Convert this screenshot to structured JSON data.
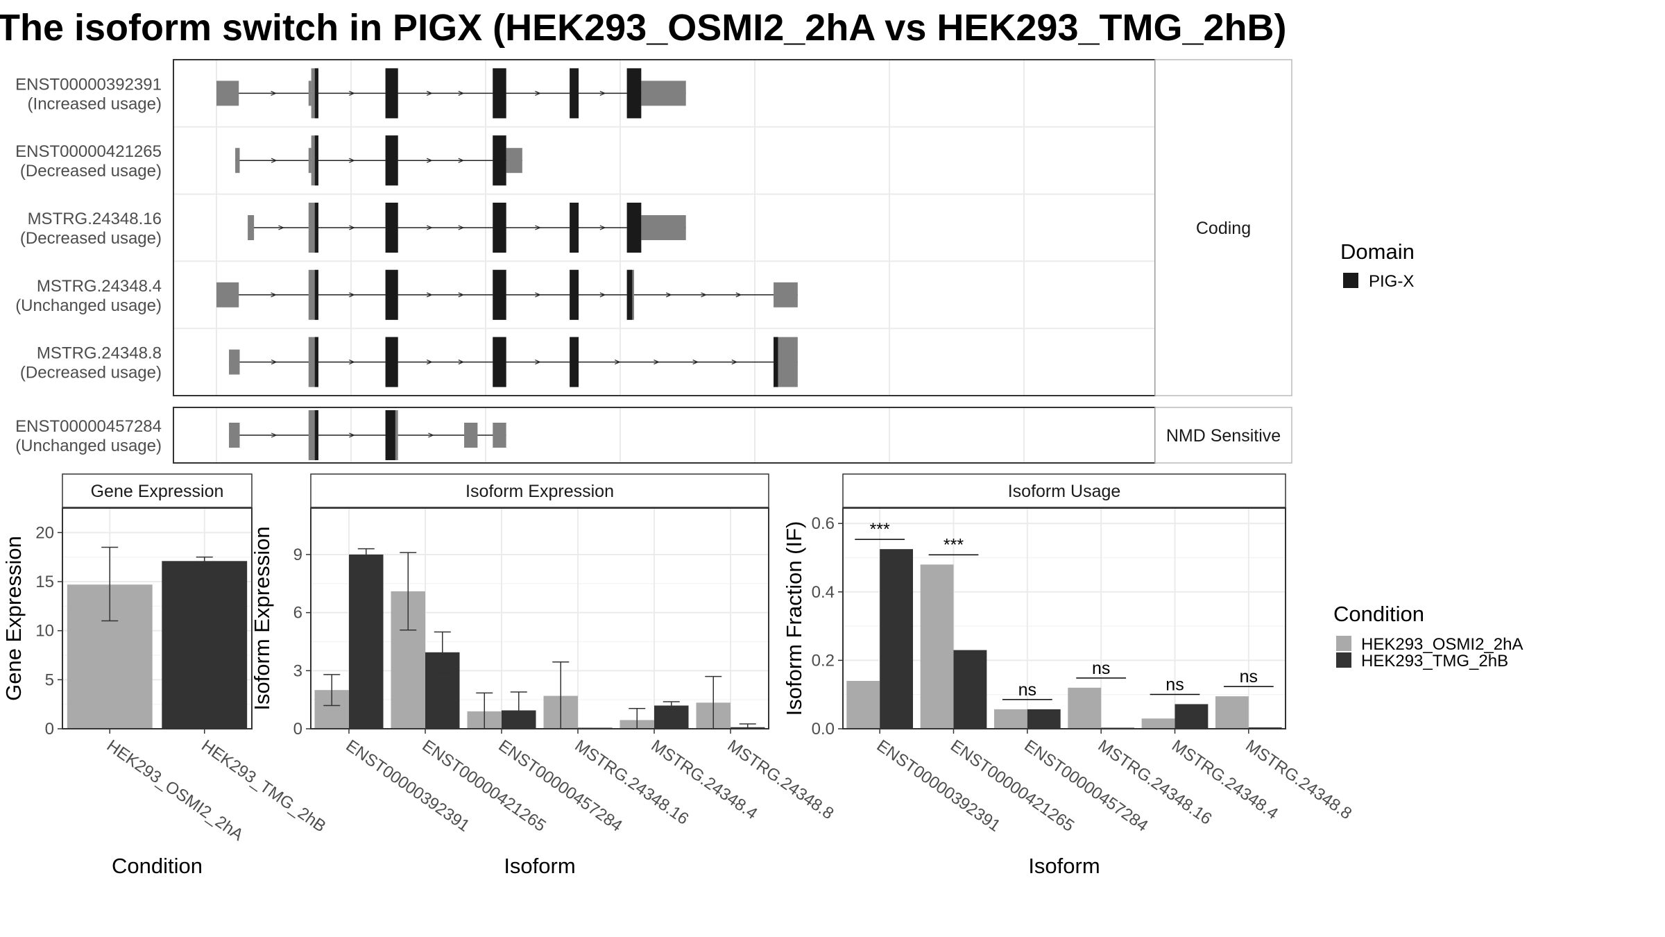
{
  "title": "The isoform switch in PIGX (HEK293_OSMI2_2hA vs HEK293_TMG_2hB)",
  "colors": {
    "exon": "#808080",
    "domain": "#1a1a1a",
    "cond_a": "#aaaaaa",
    "cond_b": "#333333",
    "grid": "#ebebeb",
    "border": "#333333",
    "strip_border": "#bbbbbb"
  },
  "domain_legend": {
    "title": "Domain",
    "items": [
      {
        "label": "PIG-X",
        "color": "#1a1a1a"
      }
    ]
  },
  "condition_legend": {
    "title": "Condition",
    "items": [
      {
        "label": "HEK293_OSMI2_2hA",
        "color": "#aaaaaa"
      },
      {
        "label": "HEK293_TMG_2hB",
        "color": "#333333"
      }
    ]
  },
  "structure": {
    "genomic_range": [
      0,
      100
    ],
    "groups": [
      {
        "label": "Coding",
        "transcripts": [
          {
            "id": "ENST00000392391",
            "usage": "(Increased usage)",
            "exons": [
              [
                0,
                2.5
              ],
              [
                10.3,
                10.6
              ],
              [
                10.6,
                11.4
              ],
              [
                18.9,
                20.3
              ],
              [
                30.9,
                32.4
              ],
              [
                39.5,
                40.5
              ],
              [
                45.9,
                47.5
              ],
              [
                47.5,
                52.5
              ]
            ],
            "utr": [
              [
                0,
                2.5
              ],
              [
                10.3,
                10.6
              ],
              [
                47.5,
                52.5
              ]
            ],
            "domains": [
              [
                11.0,
                11.4
              ],
              [
                18.9,
                20.3
              ],
              [
                30.9,
                32.4
              ],
              [
                39.5,
                40.5
              ],
              [
                45.9,
                47.5
              ]
            ]
          },
          {
            "id": "ENST00000421265",
            "usage": "(Decreased usage)",
            "exons": [
              [
                2.1,
                2.6
              ],
              [
                10.3,
                10.6
              ],
              [
                10.6,
                11.4
              ],
              [
                18.9,
                20.3
              ],
              [
                30.9,
                32.4
              ],
              [
                32.4,
                34.2
              ]
            ],
            "utr": [
              [
                2.1,
                2.6
              ],
              [
                10.3,
                10.6
              ],
              [
                32.4,
                34.2
              ]
            ],
            "domains": [
              [
                11.0,
                11.4
              ],
              [
                18.9,
                20.3
              ],
              [
                30.9,
                32.4
              ]
            ]
          },
          {
            "id": "MSTRG.24348.16",
            "usage": "(Decreased usage)",
            "exons": [
              [
                3.5,
                4.2
              ],
              [
                10.3,
                11.4
              ],
              [
                18.9,
                20.3
              ],
              [
                30.9,
                32.4
              ],
              [
                39.5,
                40.5
              ],
              [
                45.9,
                47.5
              ],
              [
                47.5,
                52.5
              ]
            ],
            "utr": [
              [
                3.5,
                4.2
              ],
              [
                10.3,
                11.0
              ],
              [
                47.5,
                52.5
              ]
            ],
            "domains": [
              [
                11.0,
                11.4
              ],
              [
                18.9,
                20.3
              ],
              [
                30.9,
                32.4
              ],
              [
                39.5,
                40.5
              ],
              [
                45.9,
                47.5
              ]
            ]
          },
          {
            "id": "MSTRG.24348.4",
            "usage": "(Unchanged usage)",
            "exons": [
              [
                0,
                2.5
              ],
              [
                10.3,
                11.4
              ],
              [
                18.9,
                20.3
              ],
              [
                30.9,
                32.4
              ],
              [
                39.5,
                40.5
              ],
              [
                45.9,
                46.7
              ],
              [
                62.3,
                65.0
              ]
            ],
            "utr": [
              [
                0,
                2.5
              ],
              [
                10.3,
                11.0
              ],
              [
                62.3,
                65.0
              ]
            ],
            "domains": [
              [
                11.0,
                11.4
              ],
              [
                18.9,
                20.3
              ],
              [
                30.9,
                32.4
              ],
              [
                39.5,
                40.5
              ],
              [
                45.9,
                46.5
              ]
            ]
          },
          {
            "id": "MSTRG.24348.8",
            "usage": "(Decreased usage)",
            "exons": [
              [
                1.4,
                2.6
              ],
              [
                10.3,
                11.4
              ],
              [
                18.9,
                20.3
              ],
              [
                30.9,
                32.4
              ],
              [
                39.5,
                40.5
              ],
              [
                62.3,
                65.0
              ]
            ],
            "utr": [
              [
                1.4,
                2.6
              ],
              [
                10.3,
                11.0
              ],
              [
                62.8,
                65.0
              ]
            ],
            "domains": [
              [
                11.0,
                11.4
              ],
              [
                18.9,
                20.3
              ],
              [
                30.9,
                32.4
              ],
              [
                39.5,
                40.5
              ],
              [
                62.3,
                62.8
              ]
            ]
          }
        ]
      },
      {
        "label": "NMD Sensitive",
        "transcripts": [
          {
            "id": "ENST00000457284",
            "usage": "(Unchanged usage)",
            "exons": [
              [
                1.4,
                2.6
              ],
              [
                10.3,
                11.4
              ],
              [
                18.9,
                20.3
              ],
              [
                27.7,
                29.2
              ],
              [
                30.9,
                32.4
              ]
            ],
            "utr": [
              [
                1.4,
                2.6
              ],
              [
                10.3,
                11.0
              ],
              [
                20.0,
                20.3
              ],
              [
                27.7,
                29.2
              ],
              [
                30.9,
                32.4
              ]
            ],
            "domains": [
              [
                11.0,
                11.4
              ],
              [
                18.9,
                20.0
              ]
            ]
          }
        ]
      }
    ]
  },
  "chart_data": [
    {
      "type": "bar",
      "strip": "Gene Expression",
      "xlabel": "Condition",
      "ylabel": "Gene Expression",
      "categories": [
        "HEK293_OSMI2_2hA",
        "HEK293_TMG_2hB"
      ],
      "values": [
        14.7,
        17.1
      ],
      "errors": [
        [
          11.0,
          18.5
        ],
        [
          16.7,
          17.5
        ]
      ],
      "ylim": [
        0,
        22.5
      ],
      "yticks": [
        "0",
        "5",
        "10",
        "15",
        "20"
      ]
    },
    {
      "type": "bar",
      "strip": "Isoform Expression",
      "xlabel": "Isoform",
      "ylabel": "Isoform Expression",
      "categories": [
        "ENST00000392391",
        "ENST00000421265",
        "ENST00000457284",
        "MSTRG.24348.16",
        "MSTRG.24348.4",
        "MSTRG.24348.8"
      ],
      "series": [
        {
          "name": "HEK293_OSMI2_2hA",
          "values": [
            2.0,
            7.1,
            0.9,
            1.7,
            0.45,
            1.35
          ],
          "errors": [
            [
              1.2,
              2.8
            ],
            [
              5.1,
              9.1
            ],
            [
              0.0,
              1.85
            ],
            [
              0.0,
              3.45
            ],
            [
              0.0,
              1.05
            ],
            [
              0.0,
              2.7
            ]
          ]
        },
        {
          "name": "HEK293_TMG_2hB",
          "values": [
            9.0,
            3.95,
            0.95,
            0.0,
            1.2,
            0.08
          ],
          "errors": [
            [
              8.7,
              9.3
            ],
            [
              2.9,
              5.0
            ],
            [
              0.0,
              1.9
            ],
            [
              0.0,
              0.0
            ],
            [
              1.0,
              1.4
            ],
            [
              0.0,
              0.25
            ]
          ]
        }
      ],
      "ylim": [
        0,
        11.4
      ],
      "yticks": [
        "0",
        "3",
        "6",
        "9"
      ]
    },
    {
      "type": "bar",
      "strip": "Isoform Usage",
      "xlabel": "Isoform",
      "ylabel": "Isoform Fraction (IF)",
      "categories": [
        "ENST00000392391",
        "ENST00000421265",
        "ENST00000457284",
        "MSTRG.24348.16",
        "MSTRG.24348.4",
        "MSTRG.24348.8"
      ],
      "series": [
        {
          "name": "HEK293_OSMI2_2hA",
          "values": [
            0.14,
            0.48,
            0.057,
            0.12,
            0.03,
            0.095
          ]
        },
        {
          "name": "HEK293_TMG_2hB",
          "values": [
            0.525,
            0.23,
            0.057,
            0.0,
            0.072,
            0.004
          ]
        }
      ],
      "significance": [
        "***",
        "***",
        "ns",
        "ns",
        "ns",
        "ns"
      ],
      "ylim": [
        0,
        0.645
      ],
      "yticks": [
        "0.0",
        "0.2",
        "0.4",
        "0.6"
      ]
    }
  ]
}
